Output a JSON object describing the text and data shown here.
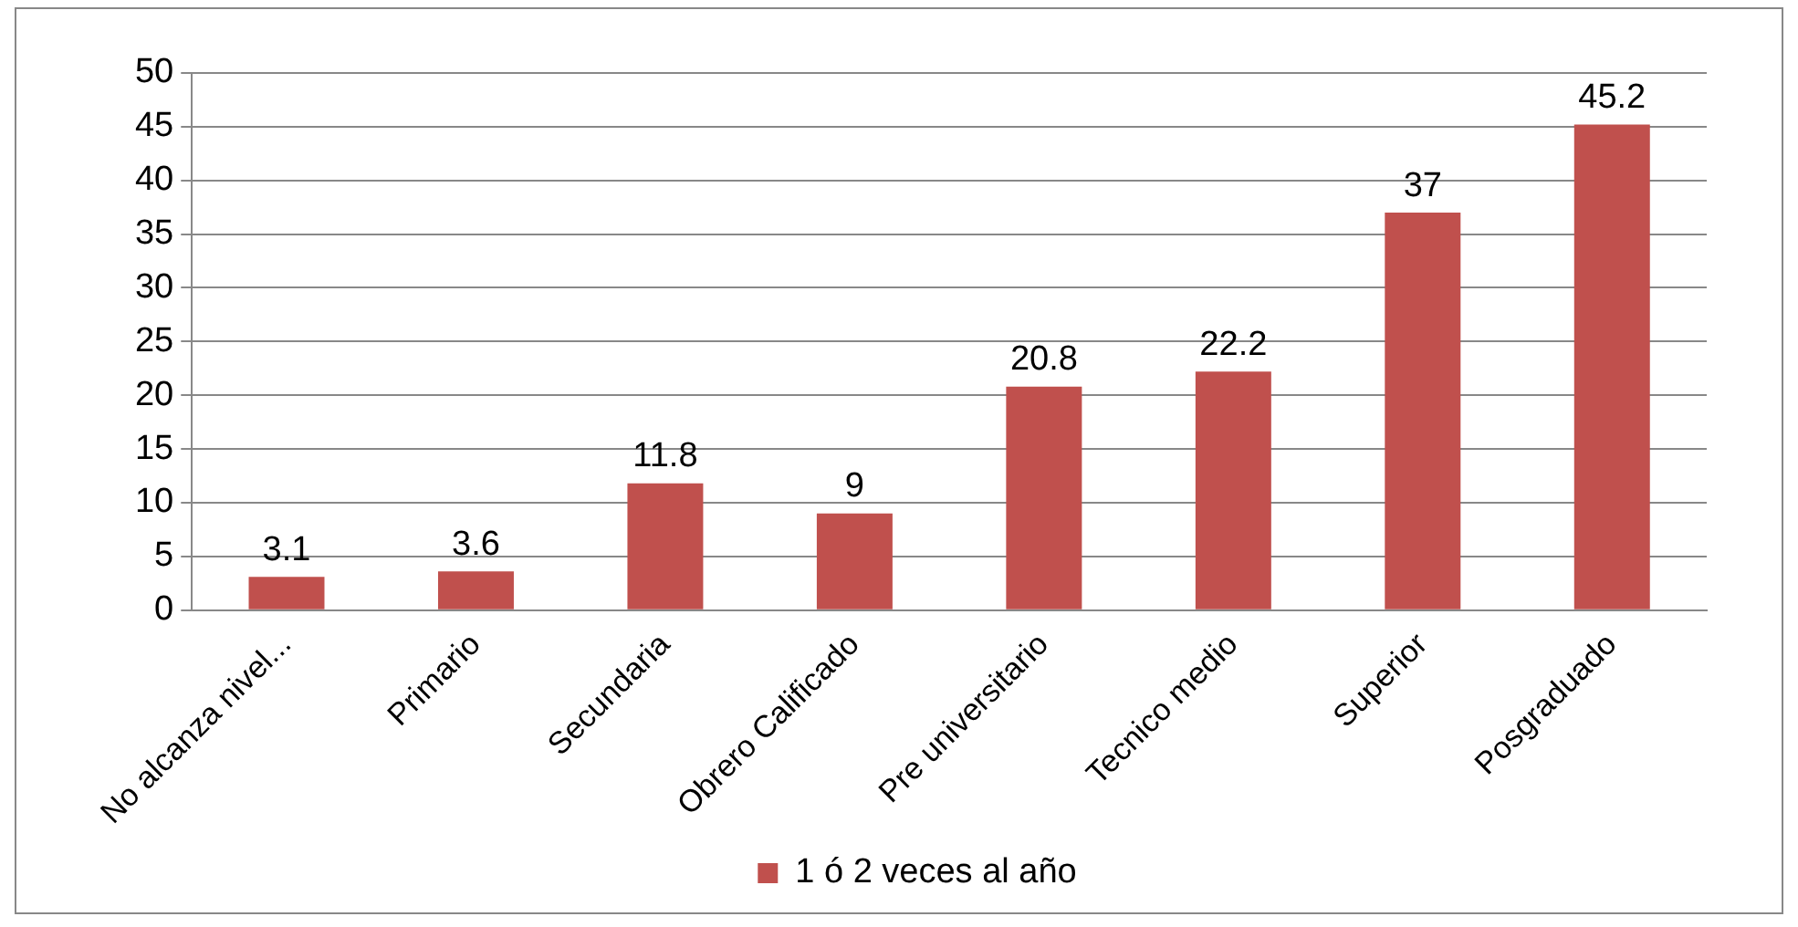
{
  "chart_data": {
    "type": "bar",
    "categories": [
      "No alcanza nivel...",
      "Primario",
      "Secundaria",
      "Obrero Calificado",
      "Pre universitario",
      "Tecnico medio",
      "Superior",
      "Posgraduado"
    ],
    "series": [
      {
        "name": "1 ó 2 veces al año",
        "color": "#c0504d",
        "values": [
          3.1,
          3.6,
          11.8,
          9,
          20.8,
          22.2,
          37,
          45.2
        ]
      }
    ],
    "ylim": [
      0,
      50
    ],
    "yticks": [
      0,
      5,
      10,
      15,
      20,
      25,
      30,
      35,
      40,
      45,
      50
    ],
    "grid": "y",
    "legend": "bottom",
    "data_labels": true
  }
}
